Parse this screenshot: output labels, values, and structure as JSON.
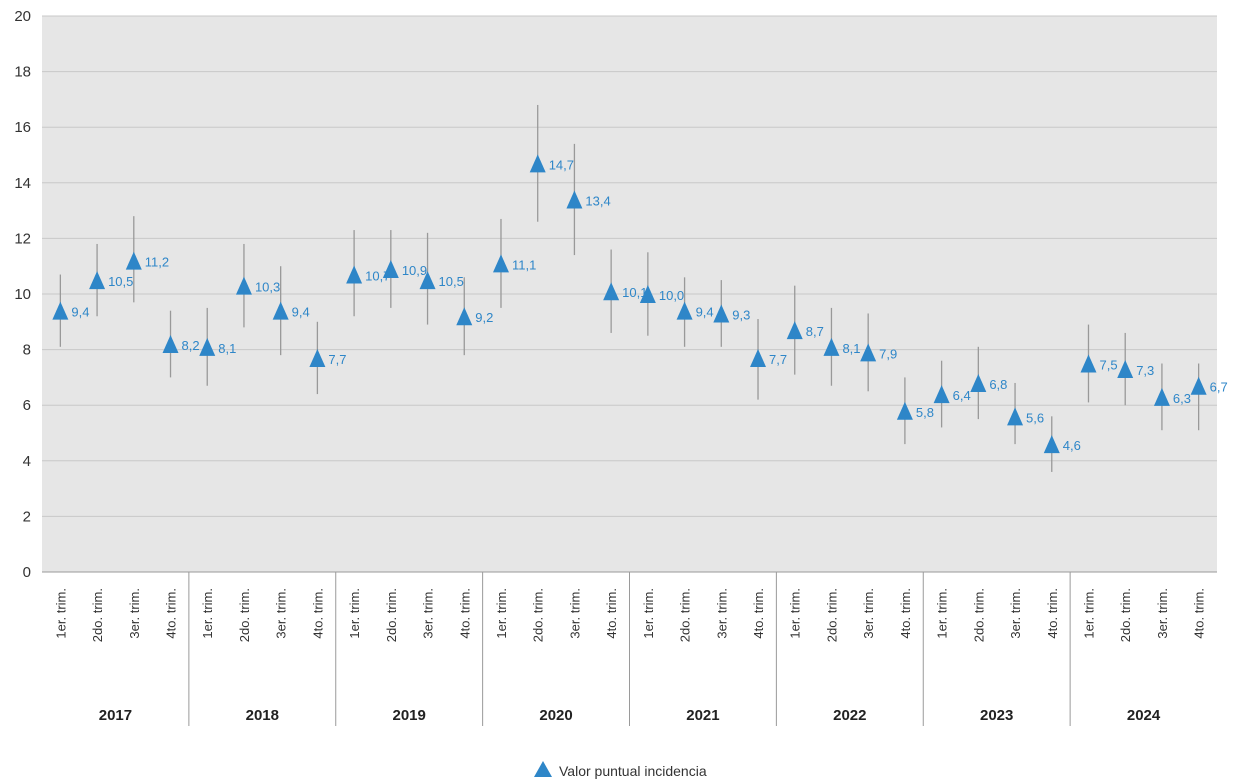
{
  "chart_data": {
    "type": "scatter",
    "title": "",
    "xlabel": "",
    "ylabel": "",
    "ylim": [
      0,
      20
    ],
    "yticks": [
      0,
      2,
      4,
      6,
      8,
      10,
      12,
      14,
      16,
      18,
      20
    ],
    "grid": true,
    "legend_position": "bottom-center",
    "colors": {
      "marker": "#2E86C8",
      "error_bar": "#999999",
      "grid": "#c8c8c8",
      "plot_bg": "#e6e6e6"
    },
    "quarter_labels": [
      "1er. trim.",
      "2do. trim.",
      "3er. trim.",
      "4to. trim."
    ],
    "years": [
      "2017",
      "2018",
      "2019",
      "2020",
      "2021",
      "2022",
      "2023",
      "2024"
    ],
    "series": [
      {
        "name": "Valor puntual incidencia",
        "values": [
          9.4,
          10.5,
          11.2,
          8.2,
          8.1,
          10.3,
          9.4,
          7.7,
          10.7,
          10.9,
          10.5,
          9.2,
          11.1,
          14.7,
          13.4,
          10.1,
          10.0,
          9.4,
          9.3,
          7.7,
          8.7,
          8.1,
          7.9,
          5.8,
          6.4,
          6.8,
          5.6,
          4.6,
          7.5,
          7.3,
          6.3,
          6.7
        ],
        "labels": [
          "9,4",
          "10,5",
          "11,2",
          "8,2",
          "8,1",
          "10,3",
          "9,4",
          "7,7",
          "10,7",
          "10,9",
          "10,5",
          "9,2",
          "11,1",
          "14,7",
          "13,4",
          "10,1",
          "10,0",
          "9,4",
          "9,3",
          "7,7",
          "8,7",
          "8,1",
          "7,9",
          "5,8",
          "6,4",
          "6,8",
          "5,6",
          "4,6",
          "7,5",
          "7,3",
          "6,3",
          "6,7"
        ],
        "error_low": [
          8.1,
          9.2,
          9.7,
          7.0,
          6.7,
          8.8,
          7.8,
          6.4,
          9.2,
          9.5,
          8.9,
          7.8,
          9.5,
          12.6,
          11.4,
          8.6,
          8.5,
          8.1,
          8.1,
          6.2,
          7.1,
          6.7,
          6.5,
          4.6,
          5.2,
          5.5,
          4.6,
          3.6,
          6.1,
          6.0,
          5.1,
          5.1
        ],
        "error_high": [
          10.7,
          11.8,
          12.8,
          9.4,
          9.5,
          11.8,
          11.0,
          9.0,
          12.3,
          12.3,
          12.2,
          10.6,
          12.7,
          16.8,
          15.4,
          11.6,
          11.5,
          10.6,
          10.5,
          9.1,
          10.3,
          9.5,
          9.3,
          7.0,
          7.6,
          8.1,
          6.8,
          5.6,
          8.9,
          8.6,
          7.5,
          7.5
        ]
      }
    ]
  }
}
